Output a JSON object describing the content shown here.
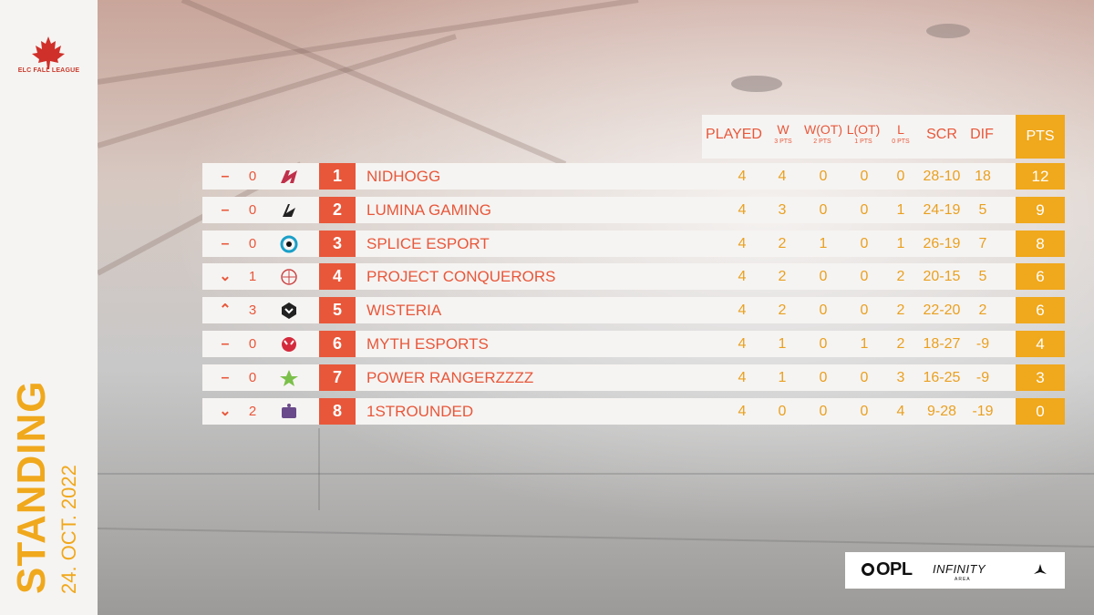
{
  "league": {
    "name": "ELC FALL LEAGUE"
  },
  "title": "STANDING",
  "date": "24. OCT. 2022",
  "headers": {
    "played": "PLAYED",
    "w": "W",
    "w_sub": "3 PTS",
    "wot": "W(OT)",
    "wot_sub": "2 PTS",
    "lot": "L(OT)",
    "lot_sub": "1 PTS",
    "l": "L",
    "l_sub": "0 PTS",
    "scr": "SCR",
    "dif": "DIF",
    "pts": "PTS"
  },
  "rows": [
    {
      "trend": "–",
      "trend_dir": "same",
      "move": "0",
      "logo": "nidhogg-logo",
      "rank": "1",
      "team": "NIDHOGG",
      "played": "4",
      "w": "4",
      "wot": "0",
      "lot": "0",
      "l": "0",
      "scr": "28-10",
      "dif": "18",
      "pts": "12"
    },
    {
      "trend": "–",
      "trend_dir": "same",
      "move": "0",
      "logo": "lumina-logo",
      "rank": "2",
      "team": "LUMINA GAMING",
      "played": "4",
      "w": "3",
      "wot": "0",
      "lot": "0",
      "l": "1",
      "scr": "24-19",
      "dif": "5",
      "pts": "9"
    },
    {
      "trend": "–",
      "trend_dir": "same",
      "move": "0",
      "logo": "splice-logo",
      "rank": "3",
      "team": "SPLICE ESPORT",
      "played": "4",
      "w": "2",
      "wot": "1",
      "lot": "0",
      "l": "1",
      "scr": "26-19",
      "dif": "7",
      "pts": "8"
    },
    {
      "trend": "⌄",
      "trend_dir": "down",
      "move": "1",
      "logo": "conquerors-logo",
      "rank": "4",
      "team": "PROJECT CONQUERORS",
      "played": "4",
      "w": "2",
      "wot": "0",
      "lot": "0",
      "l": "2",
      "scr": "20-15",
      "dif": "5",
      "pts": "6"
    },
    {
      "trend": "⌃",
      "trend_dir": "up",
      "move": "3",
      "logo": "wisteria-logo",
      "rank": "5",
      "team": "WISTERIA",
      "played": "4",
      "w": "2",
      "wot": "0",
      "lot": "0",
      "l": "2",
      "scr": "22-20",
      "dif": "2",
      "pts": "6"
    },
    {
      "trend": "–",
      "trend_dir": "same",
      "move": "0",
      "logo": "myth-logo",
      "rank": "6",
      "team": "MYTH ESPORTS",
      "played": "4",
      "w": "1",
      "wot": "0",
      "lot": "1",
      "l": "2",
      "scr": "18-27",
      "dif": "-9",
      "pts": "4"
    },
    {
      "trend": "–",
      "trend_dir": "same",
      "move": "0",
      "logo": "power-rangerzzzz-logo",
      "rank": "7",
      "team": "POWER RANGERZZZZ",
      "played": "4",
      "w": "1",
      "wot": "0",
      "lot": "0",
      "l": "3",
      "scr": "16-25",
      "dif": "-9",
      "pts": "3"
    },
    {
      "trend": "⌄",
      "trend_dir": "down",
      "move": "2",
      "logo": "1strounded-logo",
      "rank": "8",
      "team": "1STROUNDED",
      "played": "4",
      "w": "0",
      "wot": "0",
      "lot": "0",
      "l": "4",
      "scr": "9-28",
      "dif": "-19",
      "pts": "0"
    }
  ],
  "sponsors": {
    "opl": "OPL",
    "infinity": "INFINITY",
    "infinity_sub": "AREA"
  },
  "colors": {
    "accent": "#e8573a",
    "gold": "#f0a81c",
    "panel": "#f6f4f2"
  }
}
